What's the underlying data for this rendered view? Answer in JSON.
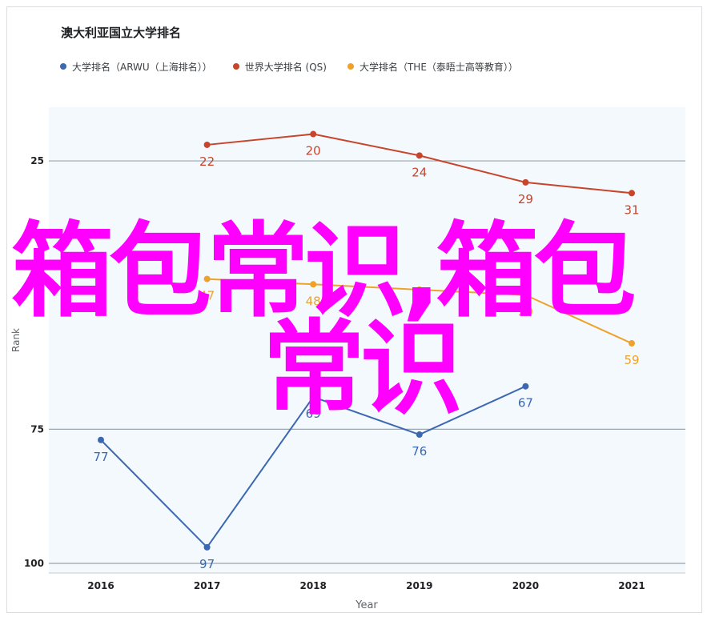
{
  "chart_data": {
    "type": "line",
    "title": "澳大利亚国立大学排名",
    "xlabel": "Year",
    "ylabel": "Rank",
    "x": [
      "2016",
      "2017",
      "2018",
      "2019",
      "2020",
      "2021"
    ],
    "y_reversed": true,
    "ylim": [
      15,
      100
    ],
    "yticks": [
      25,
      75,
      100
    ],
    "grid": true,
    "legend_position": "top",
    "series": [
      {
        "name": "大学排名（ARWU（上海排名））",
        "color": "#3c67b1",
        "values": [
          77,
          97,
          69,
          76,
          67,
          null
        ],
        "labels": [
          "77",
          "97",
          "69",
          "76",
          "67",
          ""
        ]
      },
      {
        "name": "世界大学排名 (QS)",
        "color": "#c8442a",
        "values": [
          null,
          22,
          20,
          24,
          29,
          31
        ],
        "labels": [
          "",
          "22",
          "20",
          "24",
          "29",
          "31"
        ]
      },
      {
        "name": "大学排名（THE（泰晤士高等教育））",
        "color": "#eea22b",
        "values": [
          null,
          47,
          48,
          49,
          50,
          59
        ],
        "labels": [
          "",
          "47",
          "48",
          "49",
          "50",
          "59"
        ]
      }
    ]
  },
  "watermark": {
    "line1": "箱包常识,箱包",
    "line2": "常识",
    "color": "#ff00ff"
  }
}
